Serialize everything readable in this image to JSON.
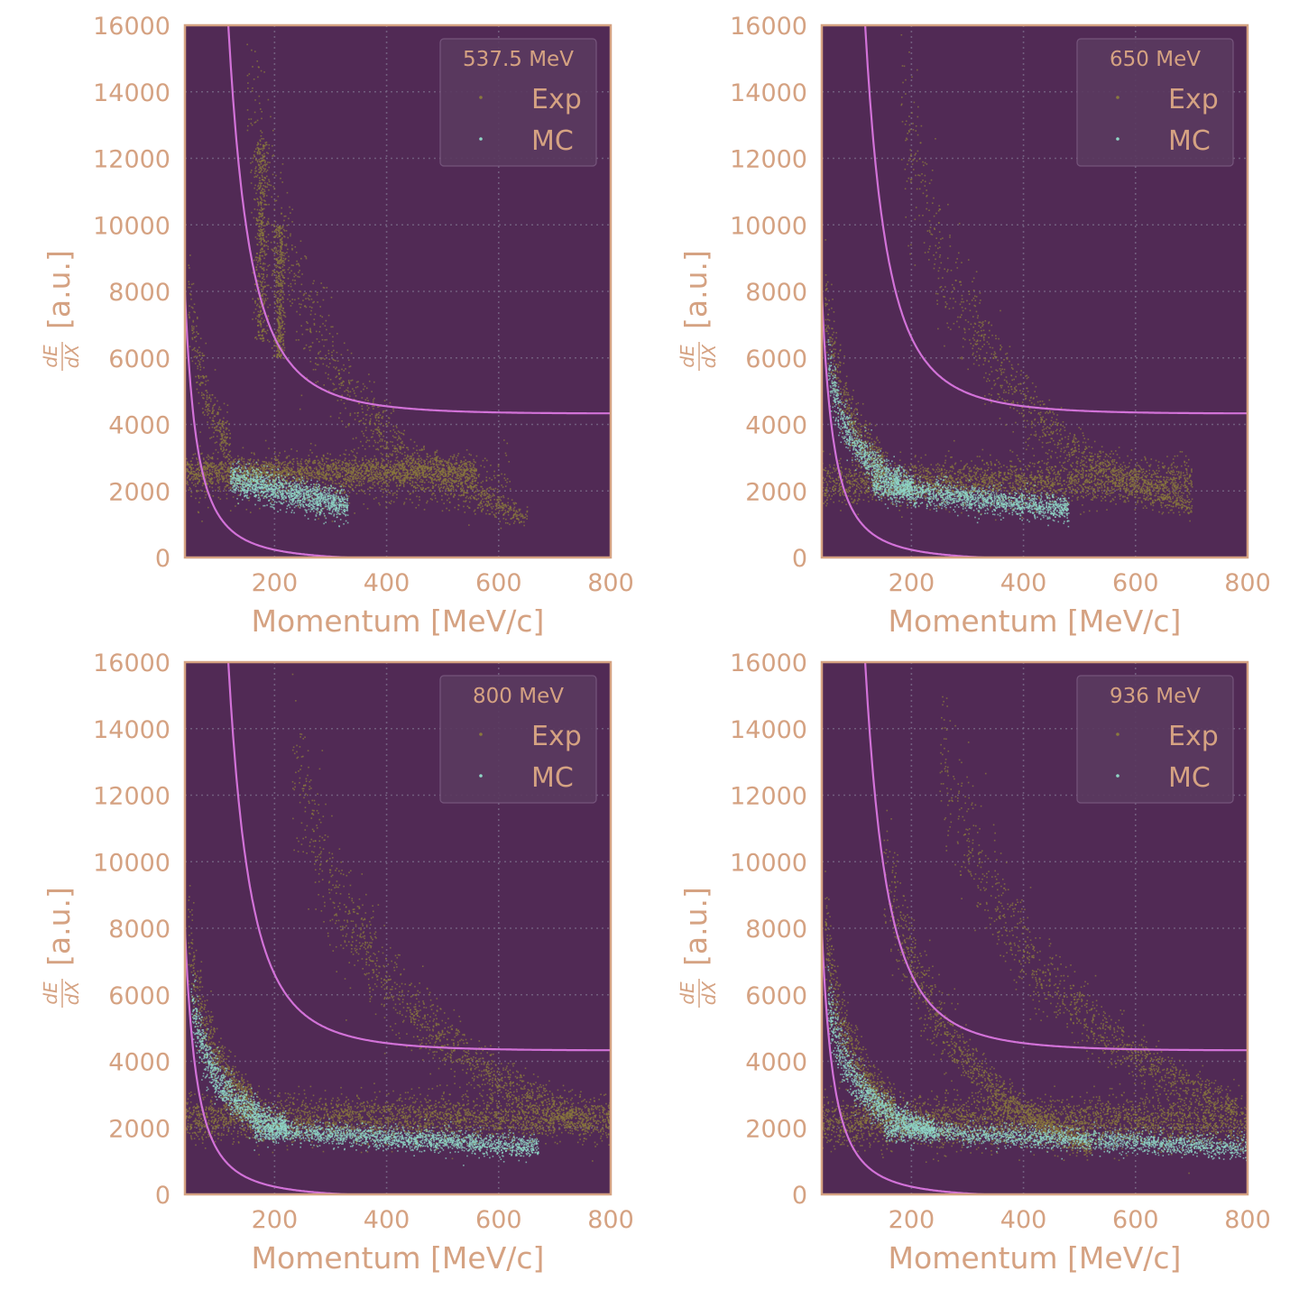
{
  "colors": {
    "background": "#ffffff",
    "plot_background": "#512a55",
    "frame": "#d5a282",
    "text": "#d5a282",
    "grid": "#7a6a88",
    "exp_points": "#8a7a3c",
    "mc_points": "#8fd6c6",
    "curve": "#d272d8",
    "legend_box": "#5a3a60"
  },
  "chart_data": [
    {
      "type": "scatter",
      "legend_title": "537.5 MeV",
      "xlabel": "Momentum [MeV/c]",
      "ylabel_frac_num": "dE",
      "ylabel_frac_den": "dX",
      "ylabel_unit": "[a.u.]",
      "xlim": [
        40,
        800
      ],
      "ylim": [
        0,
        16000
      ],
      "xticks": [
        "200",
        "400",
        "600",
        "800"
      ],
      "yticks": [
        "0",
        "2000",
        "4000",
        "6000",
        "8000",
        "10000",
        "12000",
        "14000",
        "16000"
      ],
      "grid": true,
      "legend_placement": "top-right",
      "series": [
        {
          "name": "Exp",
          "color": "#8a7a3c",
          "bands": [
            {
              "shape": "band",
              "x0": 40,
              "x1": 560,
              "y": 2600,
              "spread": 450,
              "n": 2200
            },
            {
              "shape": "band",
              "x0": 40,
              "x1": 620,
              "y": 2300,
              "spread": 900,
              "n": 700
            },
            {
              "shape": "curve",
              "x0": 45,
              "x1": 120,
              "a": 330000,
              "c": 600,
              "spread": 0.2,
              "n": 300
            },
            {
              "shape": "streak",
              "x": 175,
              "xw": 12,
              "y0": 6500,
              "y1": 12500,
              "n": 500
            },
            {
              "shape": "streak",
              "x": 208,
              "xw": 9,
              "y0": 6000,
              "y1": 10000,
              "n": 400
            },
            {
              "shape": "curve",
              "x0": 150,
              "x1": 650,
              "a": 2600000,
              "c": -2800,
              "spread": 0.25,
              "n": 1100
            }
          ]
        },
        {
          "name": "MC",
          "color": "#8fd6c6",
          "bands": [
            {
              "shape": "band",
              "x0": 120,
              "x1": 330,
              "y": 2400,
              "spread": 450,
              "n": 1400,
              "slope": -4
            }
          ]
        }
      ],
      "curves": [
        {
          "type": "upper",
          "a": 1660000,
          "c": 4200
        },
        {
          "type": "lower",
          "a": 9000000,
          "p": 1.9,
          "c": -150
        }
      ]
    },
    {
      "type": "scatter",
      "legend_title": "650 MeV",
      "xlabel": "Momentum [MeV/c]",
      "ylabel_frac_num": "dE",
      "ylabel_frac_den": "dX",
      "ylabel_unit": "[a.u.]",
      "xlim": [
        40,
        800
      ],
      "ylim": [
        0,
        16000
      ],
      "xticks": [
        "200",
        "400",
        "600",
        "800"
      ],
      "yticks": [
        "0",
        "2000",
        "4000",
        "6000",
        "8000",
        "10000",
        "12000",
        "14000",
        "16000"
      ],
      "grid": true,
      "legend_placement": "top-right",
      "series": [
        {
          "name": "Exp",
          "color": "#8a7a3c",
          "bands": [
            {
              "shape": "band",
              "x0": 40,
              "x1": 700,
              "y": 2300,
              "spread": 650,
              "n": 2600
            },
            {
              "shape": "curve",
              "x0": 45,
              "x1": 150,
              "a": 330000,
              "c": 600,
              "spread": 0.22,
              "n": 500
            },
            {
              "shape": "curve",
              "x0": 180,
              "x1": 700,
              "a": 3000000,
              "c": -2800,
              "spread": 0.22,
              "n": 1100
            }
          ]
        },
        {
          "name": "MC",
          "color": "#8fd6c6",
          "bands": [
            {
              "shape": "curve",
              "x0": 50,
              "x1": 200,
              "a": 250000,
              "c": 900,
              "spread": 0.18,
              "n": 900
            },
            {
              "shape": "band",
              "x0": 130,
              "x1": 480,
              "y": 2150,
              "spread": 380,
              "n": 1700,
              "slope": -2
            }
          ]
        }
      ],
      "curves": [
        {
          "type": "upper",
          "a": 1660000,
          "c": 4200
        },
        {
          "type": "lower",
          "a": 9000000,
          "p": 1.9,
          "c": -150
        }
      ]
    },
    {
      "type": "scatter",
      "legend_title": "800 MeV",
      "xlabel": "Momentum [MeV/c]",
      "ylabel_frac_num": "dE",
      "ylabel_frac_den": "dX",
      "ylabel_unit": "[a.u.]",
      "xlim": [
        40,
        800
      ],
      "ylim": [
        0,
        16000
      ],
      "xticks": [
        "200",
        "400",
        "600",
        "800"
      ],
      "yticks": [
        "0",
        "2000",
        "4000",
        "6000",
        "8000",
        "10000",
        "12000",
        "14000",
        "16000"
      ],
      "grid": true,
      "legend_placement": "top-right",
      "series": [
        {
          "name": "Exp",
          "color": "#8a7a3c",
          "bands": [
            {
              "shape": "band",
              "x0": 40,
              "x1": 800,
              "y": 2300,
              "spread": 700,
              "n": 3000
            },
            {
              "shape": "curve",
              "x0": 45,
              "x1": 160,
              "a": 330000,
              "c": 700,
              "spread": 0.22,
              "n": 600
            },
            {
              "shape": "curve",
              "x0": 230,
              "x1": 760,
              "a": 3600000,
              "c": -2500,
              "spread": 0.2,
              "n": 1300
            }
          ]
        },
        {
          "name": "MC",
          "color": "#8fd6c6",
          "bands": [
            {
              "shape": "curve",
              "x0": 50,
              "x1": 220,
              "a": 250000,
              "c": 900,
              "spread": 0.18,
              "n": 1100
            },
            {
              "shape": "band",
              "x0": 160,
              "x1": 670,
              "y": 1950,
              "spread": 330,
              "n": 2000,
              "slope": -1
            }
          ]
        }
      ],
      "curves": [
        {
          "type": "upper",
          "a": 1660000,
          "c": 4200
        },
        {
          "type": "lower",
          "a": 9000000,
          "p": 1.9,
          "c": -150
        }
      ]
    },
    {
      "type": "scatter",
      "legend_title": "936 MeV",
      "xlabel": "Momentum [MeV/c]",
      "ylabel_frac_num": "dE",
      "ylabel_frac_den": "dX",
      "ylabel_unit": "[a.u.]",
      "xlim": [
        40,
        800
      ],
      "ylim": [
        0,
        16000
      ],
      "xticks": [
        "200",
        "400",
        "600",
        "800"
      ],
      "yticks": [
        "0",
        "2000",
        "4000",
        "6000",
        "8000",
        "10000",
        "12000",
        "14000",
        "16000"
      ],
      "grid": true,
      "legend_placement": "top-right",
      "series": [
        {
          "name": "Exp",
          "color": "#8a7a3c",
          "bands": [
            {
              "shape": "band",
              "x0": 40,
              "x1": 800,
              "y": 2200,
              "spread": 750,
              "n": 3200
            },
            {
              "shape": "curve",
              "x0": 45,
              "x1": 170,
              "a": 330000,
              "c": 700,
              "spread": 0.22,
              "n": 700
            },
            {
              "shape": "curve",
              "x0": 150,
              "x1": 520,
              "a": 1800000,
              "c": -2000,
              "spread": 0.2,
              "n": 1300
            },
            {
              "shape": "curve",
              "x0": 250,
              "x1": 780,
              "a": 4000000,
              "c": -2500,
              "spread": 0.18,
              "n": 1200
            }
          ]
        },
        {
          "name": "MC",
          "color": "#8fd6c6",
          "bands": [
            {
              "shape": "curve",
              "x0": 50,
              "x1": 240,
              "a": 250000,
              "c": 900,
              "spread": 0.18,
              "n": 1200
            },
            {
              "shape": "band",
              "x0": 150,
              "x1": 800,
              "y": 1950,
              "spread": 330,
              "n": 2100,
              "slope": -0.8
            }
          ]
        }
      ],
      "curves": [
        {
          "type": "upper",
          "a": 1660000,
          "c": 4200
        },
        {
          "type": "lower",
          "a": 9000000,
          "p": 1.9,
          "c": -150
        }
      ]
    }
  ]
}
